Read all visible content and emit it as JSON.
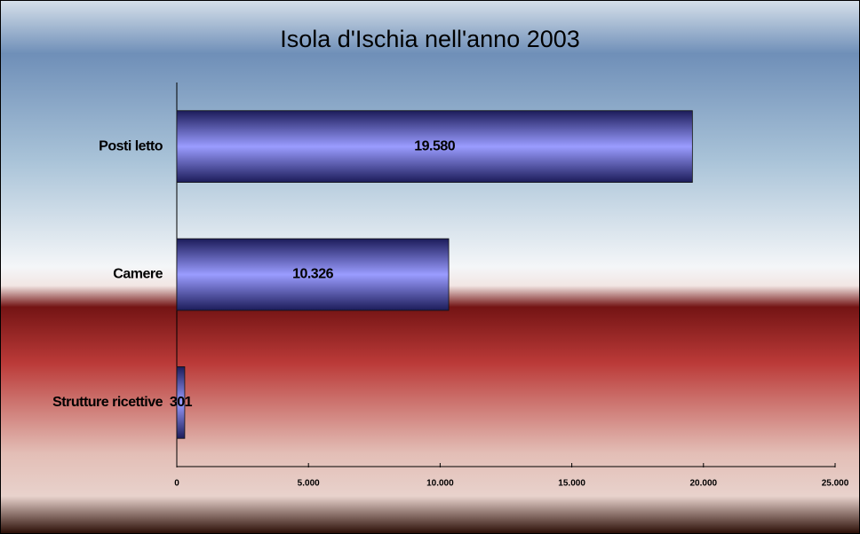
{
  "chart_data": {
    "type": "bar",
    "orientation": "horizontal",
    "title": "Isola d'Ischia nell'anno 2003",
    "categories": [
      "Posti letto",
      "Camere",
      "Strutture ricettive"
    ],
    "values": [
      19580,
      10326,
      301
    ],
    "value_labels": [
      "19.580",
      "10.326",
      "301"
    ],
    "color": "#9a9cff",
    "xlim": [
      0,
      25000
    ],
    "xticks": [
      0,
      {
        "value": 5000,
        "label": "5.000"
      },
      {
        "value": 10000,
        "label": "10.000"
      },
      {
        "value": 15000,
        "label": "15.000"
      },
      {
        "value": 20000,
        "label": "20.000"
      },
      {
        "value": 25000,
        "label": "25.000"
      }
    ],
    "grid": false
  }
}
